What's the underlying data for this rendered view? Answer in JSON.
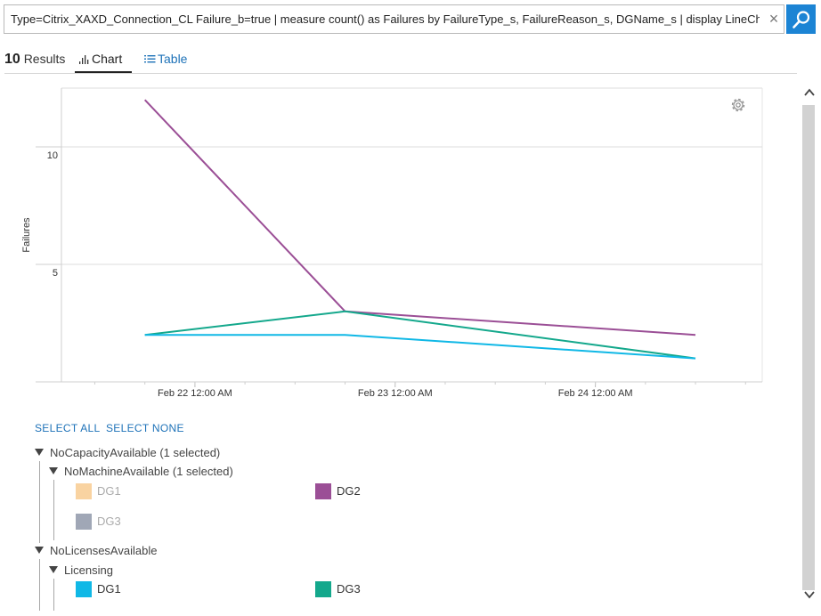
{
  "search": {
    "query": "Type=Citrix_XAXD_Connection_CL Failure_b=true | measure count() as Failures by FailureType_s, FailureReason_s, DGName_s | display LineChart",
    "clear_glyph": "×"
  },
  "tabs": {
    "results_count": "10",
    "results_label": "Results",
    "chart_label": "Chart",
    "table_label": "Table"
  },
  "chart_data": {
    "type": "line",
    "ylabel": "Failures",
    "ylim": [
      0,
      12.5
    ],
    "y_ticks": [
      5,
      10
    ],
    "y_tick_labels": [
      "5",
      "10"
    ],
    "x_tick_labels": [
      "Feb 22 12:00 AM",
      "Feb 23 12:00 AM",
      "Feb 24 12:00 AM"
    ],
    "x_range": [
      "2016-02-21 08:00",
      "2016-02-24 20:00"
    ],
    "x": [
      "2016-02-21 18:00",
      "2016-02-22 18:00",
      "2016-02-24 12:00"
    ],
    "series": [
      {
        "name": "DG2",
        "group": "NoMachineAvailable",
        "color": "#9b4f96",
        "values": [
          12,
          3,
          2
        ]
      },
      {
        "name": "DG3",
        "group": "Licensing",
        "color": "#14a88c",
        "values": [
          2,
          3,
          1
        ]
      },
      {
        "name": "DG1",
        "group": "Licensing",
        "color": "#10b8e6",
        "values": [
          2,
          2,
          1
        ]
      }
    ],
    "grid": true,
    "settings_icon": "gear-icon"
  },
  "legend": {
    "select_all": "SELECT ALL",
    "select_none": "SELECT NONE",
    "groups": [
      {
        "label": "NoCapacityAvailable (1 selected)",
        "children": [
          {
            "label": "NoMachineAvailable (1 selected)",
            "items": [
              {
                "name": "DG1",
                "color": "#f9d3a1",
                "selected": false
              },
              {
                "name": "DG2",
                "color": "#9b4f96",
                "selected": true
              },
              {
                "name": "DG3",
                "color": "#a0a7b6",
                "selected": false
              }
            ]
          }
        ]
      },
      {
        "label": "NoLicensesAvailable",
        "children": [
          {
            "label": "Licensing",
            "items": [
              {
                "name": "DG1",
                "color": "#10b8e6",
                "selected": true
              },
              {
                "name": "DG3",
                "color": "#14a88c",
                "selected": true
              }
            ]
          }
        ]
      }
    ]
  }
}
